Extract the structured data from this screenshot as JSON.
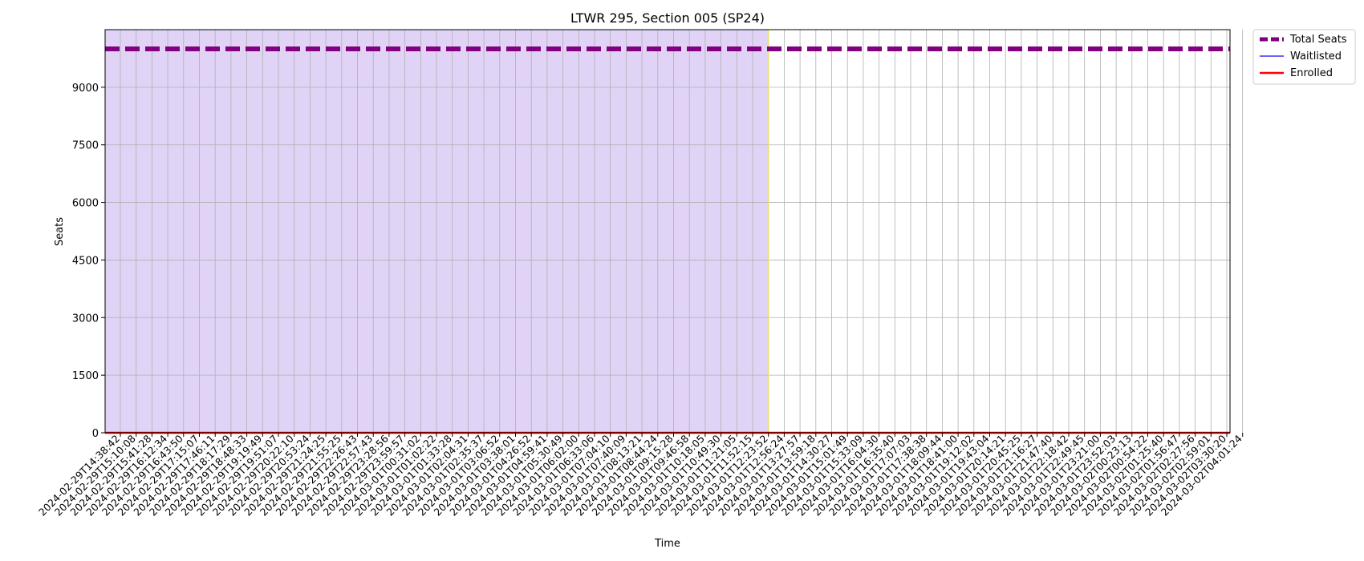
{
  "chart_data": {
    "type": "line",
    "title": "LTWR 295, Section 005 (SP24)",
    "xlabel": "Time",
    "ylabel": "Seats",
    "ylim": [
      0,
      10500
    ],
    "yticks": [
      0,
      1500,
      3000,
      4500,
      6000,
      7500,
      9000
    ],
    "grid": true,
    "legend_position": "outside-top-right",
    "x": [
      "2024-02-29T14:38:42",
      "2024-02-29T15:10:08",
      "2024-02-29T15:41:28",
      "2024-02-29T16:12:34",
      "2024-02-29T16:43:50",
      "2024-02-29T17:15:07",
      "2024-02-29T17:46:11",
      "2024-02-29T18:17:29",
      "2024-02-29T18:48:33",
      "2024-02-29T19:19:49",
      "2024-02-29T19:51:07",
      "2024-02-29T20:22:10",
      "2024-02-29T20:53:24",
      "2024-02-29T21:24:25",
      "2024-02-29T21:55:25",
      "2024-02-29T22:26:43",
      "2024-02-29T22:57:43",
      "2024-02-29T23:28:56",
      "2024-02-29T23:59:57",
      "2024-03-01T00:31:02",
      "2024-03-01T01:02:22",
      "2024-03-01T01:33:28",
      "2024-03-01T02:04:31",
      "2024-03-01T02:35:37",
      "2024-03-01T03:06:52",
      "2024-03-01T03:38:01",
      "2024-03-01T04:26:52",
      "2024-03-01T04:59:41",
      "2024-03-01T05:30:49",
      "2024-03-01T06:02:00",
      "2024-03-01T06:33:06",
      "2024-03-01T07:04:10",
      "2024-03-01T07:40:09",
      "2024-03-01T08:13:21",
      "2024-03-01T08:44:24",
      "2024-03-01T09:15:28",
      "2024-03-01T09:46:58",
      "2024-03-01T10:18:05",
      "2024-03-01T10:49:30",
      "2024-03-01T11:21:05",
      "2024-03-01T11:52:15",
      "2024-03-01T12:23:52",
      "2024-03-01T12:56:24",
      "2024-03-01T13:27:57",
      "2024-03-01T13:59:18",
      "2024-03-01T14:30:27",
      "2024-03-01T15:01:49",
      "2024-03-01T15:33:09",
      "2024-03-01T16:04:30",
      "2024-03-01T16:35:40",
      "2024-03-01T17:07:03",
      "2024-03-01T17:38:38",
      "2024-03-01T18:09:44",
      "2024-03-01T18:41:00",
      "2024-03-01T19:12:02",
      "2024-03-01T19:43:04",
      "2024-03-01T20:14:21",
      "2024-03-01T20:45:25",
      "2024-03-01T21:16:27",
      "2024-03-01T21:47:40",
      "2024-03-01T22:18:42",
      "2024-03-01T22:49:45",
      "2024-03-01T23:21:00",
      "2024-03-01T23:52:03",
      "2024-03-02T00:23:13",
      "2024-03-02T00:54:22",
      "2024-03-02T01:25:40",
      "2024-03-02T01:56:47",
      "2024-03-02T02:27:56",
      "2024-03-02T02:59:01",
      "2024-03-02T03:30:20",
      "2024-03-02T04:01:24"
    ],
    "series": [
      {
        "name": "Total Seats",
        "value": 10000,
        "color": "#800080",
        "style": "dashed-thick"
      },
      {
        "name": "Waitlisted",
        "value": 0,
        "color": "#3333ff",
        "style": "solid"
      },
      {
        "name": "Enrolled",
        "value": 0,
        "color": "#ff0000",
        "style": "solid-thick"
      }
    ],
    "shaded_region": {
      "from": "2024-02-29T14:38:42",
      "to": "2024-03-01T12:23:52",
      "color": "#e0d3f6"
    },
    "marker_line": {
      "x": "2024-03-01T12:23:52",
      "color": "#e8e070"
    }
  }
}
